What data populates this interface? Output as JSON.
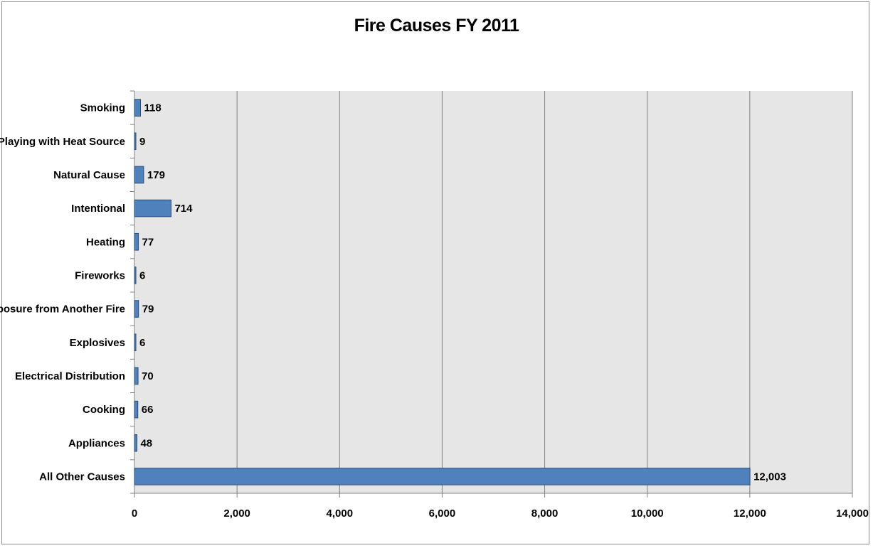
{
  "chart_data": {
    "type": "bar",
    "orientation": "horizontal",
    "title": "Fire Causes FY 2011",
    "xlabel": "",
    "ylabel": "",
    "categories": [
      "All Other Causes",
      "Appliances",
      "Cooking",
      "Electrical Distribution",
      "Explosives",
      "Exposure from Another Fire",
      "Fireworks",
      "Heating",
      "Intentional",
      "Natural Cause",
      "Playing with Heat Source",
      "Smoking"
    ],
    "values": [
      12003,
      48,
      66,
      70,
      6,
      79,
      6,
      77,
      714,
      179,
      9,
      118
    ],
    "value_labels": [
      "12,003",
      "48",
      "66",
      "70",
      "6",
      "79",
      "6",
      "77",
      "714",
      "179",
      "9",
      "118"
    ],
    "xlim": [
      0,
      14000
    ],
    "x_ticks": [
      0,
      2000,
      4000,
      6000,
      8000,
      10000,
      12000,
      14000
    ],
    "x_tick_labels": [
      "0",
      "2,000",
      "4,000",
      "6,000",
      "8,000",
      "10,000",
      "12,000",
      "14,000"
    ],
    "grid": true,
    "legend": "none",
    "colors": {
      "bar_fill": "#4f81bd",
      "bar_stroke": "#2c4d75",
      "plot_background": "#e6e6e6",
      "gridline": "#808080"
    }
  }
}
